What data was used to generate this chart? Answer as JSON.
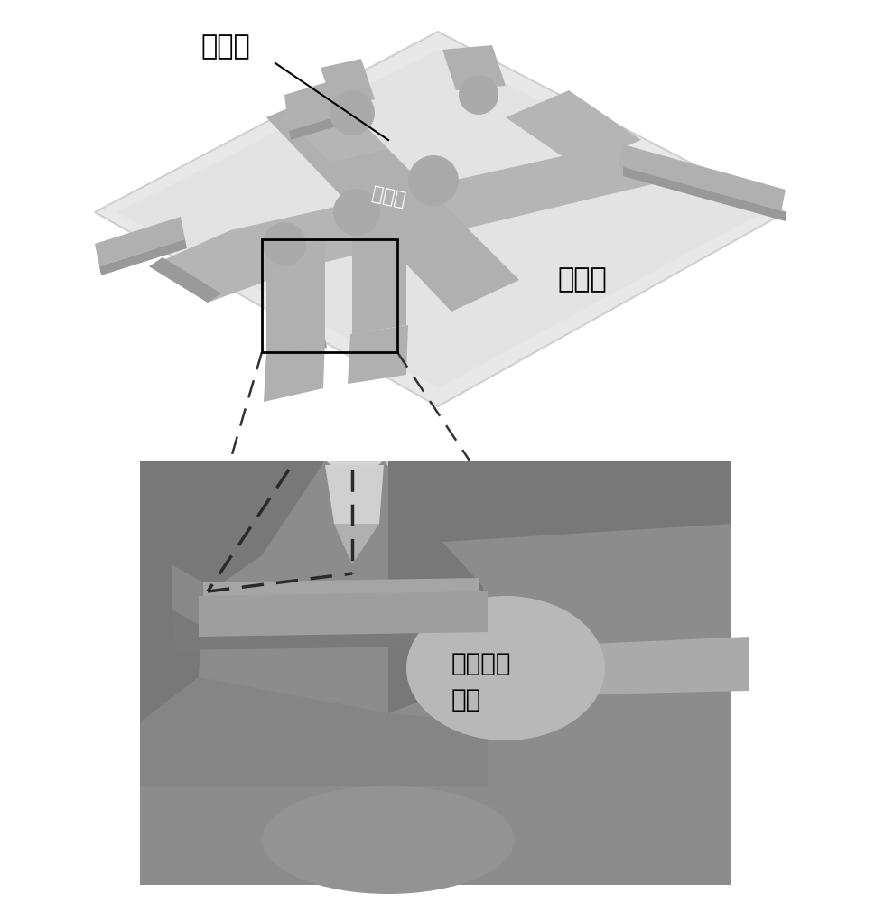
{
  "background_color": "#ffffff",
  "top_panel": {
    "label_yuanqiang": "远腔室",
    "label_zhutongdao": "主通道",
    "label_jinqiang": "近腔室"
  },
  "bottom_panel": {
    "label_xibao": "细胞培养\n腔室"
  },
  "figsize": [
    9.7,
    10.0
  ],
  "dpi": 100
}
